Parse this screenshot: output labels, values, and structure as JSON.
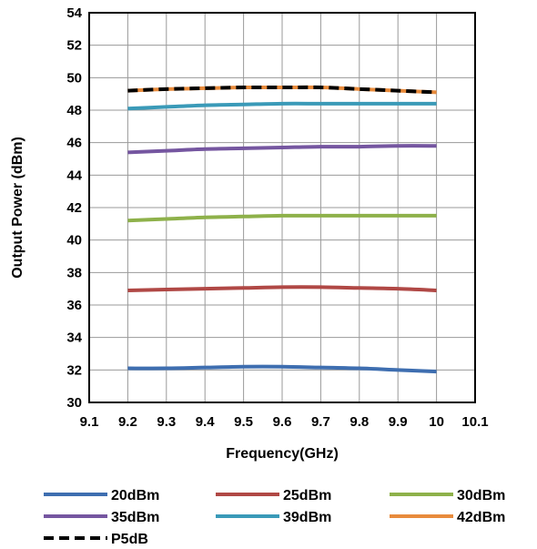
{
  "chart_data": {
    "type": "line",
    "title": "",
    "xlabel": "Frequency(GHz)",
    "ylabel": "Output Power (dBm)",
    "xlim": [
      9.1,
      10.1
    ],
    "ylim": [
      30,
      54
    ],
    "x_ticks": [
      "9.1",
      "9.2",
      "9.3",
      "9.4",
      "9.5",
      "9.6",
      "9.7",
      "9.8",
      "9.9",
      "10",
      "10.1"
    ],
    "y_ticks": [
      "30",
      "32",
      "34",
      "36",
      "38",
      "40",
      "42",
      "44",
      "46",
      "48",
      "50",
      "52",
      "54"
    ],
    "grid": true,
    "legend_position": "bottom",
    "x": [
      9.2,
      9.3,
      9.4,
      9.5,
      9.6,
      9.7,
      9.8,
      9.9,
      10
    ],
    "series": [
      {
        "name": "20dBm",
        "color": "#3E6EB0",
        "dash": "solid",
        "values": [
          32.1,
          32.1,
          32.15,
          32.2,
          32.2,
          32.15,
          32.1,
          32.0,
          31.9
        ]
      },
      {
        "name": "25dBm",
        "color": "#B04845",
        "dash": "solid",
        "values": [
          36.9,
          36.95,
          37.0,
          37.05,
          37.1,
          37.1,
          37.05,
          37.0,
          36.9
        ]
      },
      {
        "name": "30dBm",
        "color": "#8EB14A",
        "dash": "solid",
        "values": [
          41.2,
          41.3,
          41.4,
          41.45,
          41.5,
          41.5,
          41.5,
          41.5,
          41.5
        ]
      },
      {
        "name": "35dBm",
        "color": "#7556A0",
        "dash": "solid",
        "values": [
          45.4,
          45.5,
          45.6,
          45.65,
          45.7,
          45.75,
          45.75,
          45.8,
          45.8
        ]
      },
      {
        "name": "39dBm",
        "color": "#3A9AB8",
        "dash": "solid",
        "values": [
          48.1,
          48.2,
          48.3,
          48.35,
          48.4,
          48.4,
          48.4,
          48.4,
          48.4
        ]
      },
      {
        "name": "42dBm",
        "color": "#E88B3C",
        "dash": "solid",
        "values": [
          49.2,
          49.3,
          49.35,
          49.4,
          49.4,
          49.4,
          49.3,
          49.2,
          49.1
        ]
      },
      {
        "name": "P5dB",
        "color": "#000000",
        "dash": "dashed",
        "values": [
          49.2,
          49.3,
          49.35,
          49.4,
          49.4,
          49.4,
          49.3,
          49.2,
          49.1
        ]
      }
    ]
  }
}
